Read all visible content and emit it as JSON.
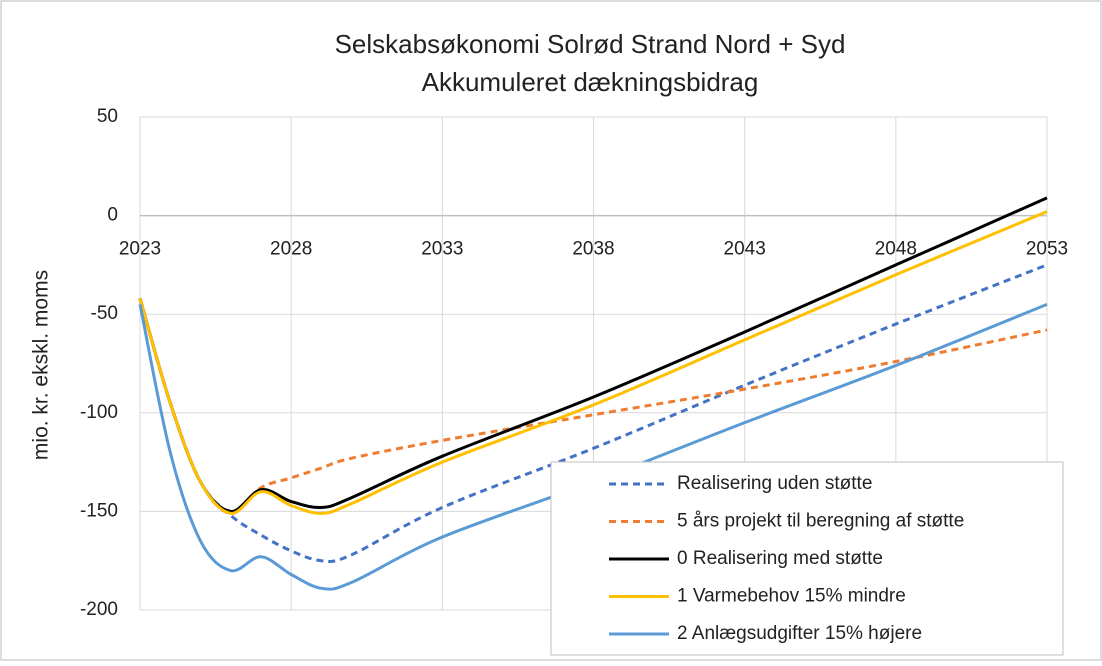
{
  "chart_data": {
    "type": "line",
    "title": "Selskabsøkonomi Solrød Strand Nord + Syd",
    "subtitle": "Akkumuleret dækningsbidrag",
    "y_label": "mio. kr. ekskl. moms",
    "x": [
      2023,
      2024,
      2025,
      2026,
      2027,
      2028,
      2029,
      2030,
      2033,
      2038,
      2043,
      2048,
      2053
    ],
    "xlim": [
      2023,
      2053
    ],
    "xticks": [
      2023,
      2028,
      2033,
      2038,
      2043,
      2048,
      2053
    ],
    "ylim": [
      -200,
      50
    ],
    "yticks": [
      50,
      0,
      -50,
      -100,
      -150,
      -200
    ],
    "grid": true,
    "legend": "lower right",
    "series": [
      {
        "name": "Realisering uden støtte",
        "color": "#4472c4",
        "dashed": true,
        "values": [
          -42,
          -95,
          -135,
          -152,
          -162,
          -170,
          -175,
          -172,
          -148,
          -118,
          -86,
          -55,
          -25
        ]
      },
      {
        "name": "5 års projekt til beregning af støtte",
        "color": "#ed7d31",
        "dashed": true,
        "values": [
          -42,
          -95,
          -135,
          -151,
          -138,
          -133,
          -128,
          -123,
          -114,
          -101,
          -88,
          -74,
          -58
        ]
      },
      {
        "name": "0 Realisering med støtte",
        "color": "#000000",
        "dashed": false,
        "values": [
          -42,
          -95,
          -135,
          -150,
          -139,
          -145,
          -148,
          -143,
          -122,
          -92,
          -59,
          -25,
          9
        ]
      },
      {
        "name": "1 Varmebehov 15% mindre",
        "color": "#ffc000",
        "dashed": false,
        "values": [
          -42,
          -95,
          -135,
          -151,
          -140,
          -147,
          -151,
          -146,
          -125,
          -96,
          -63,
          -30,
          2
        ]
      },
      {
        "name": "2 Anlægsudgifter 15% højere",
        "color": "#5b9bd5",
        "dashed": false,
        "values": [
          -45,
          -120,
          -165,
          -180,
          -173,
          -182,
          -189,
          -186,
          -163,
          -135,
          -105,
          -76,
          -45
        ]
      }
    ]
  }
}
